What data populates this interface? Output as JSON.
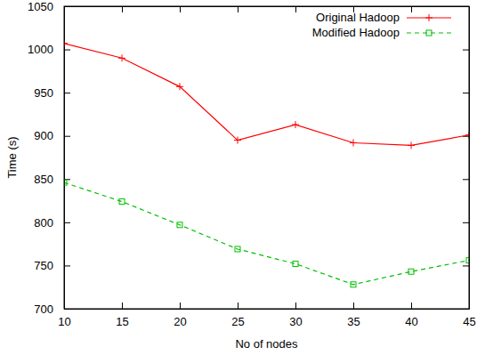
{
  "chart_data": {
    "type": "line",
    "x_label": "No of nodes",
    "y_label": "Time (s)",
    "x": [
      10,
      15,
      20,
      25,
      30,
      35,
      40,
      45
    ],
    "series": [
      {
        "name": "Original Hadoop",
        "color": "#ff0000",
        "line_style": "solid",
        "marker": "plus",
        "values": [
          1007,
          990,
          957,
          895,
          913,
          892,
          889,
          901
        ]
      },
      {
        "name": "Modified Hadoop",
        "color": "#00c000",
        "line_style": "dashed",
        "marker": "square",
        "values": [
          846,
          824,
          797,
          769,
          752,
          728,
          743,
          756
        ]
      }
    ],
    "xlim": [
      10,
      45
    ],
    "xticks": [
      10,
      15,
      20,
      25,
      30,
      35,
      40,
      45
    ],
    "ylim": [
      700,
      1050
    ],
    "yticks": [
      700,
      750,
      800,
      850,
      900,
      950,
      1000,
      1050
    ],
    "grid": false,
    "legend": "top-right"
  }
}
